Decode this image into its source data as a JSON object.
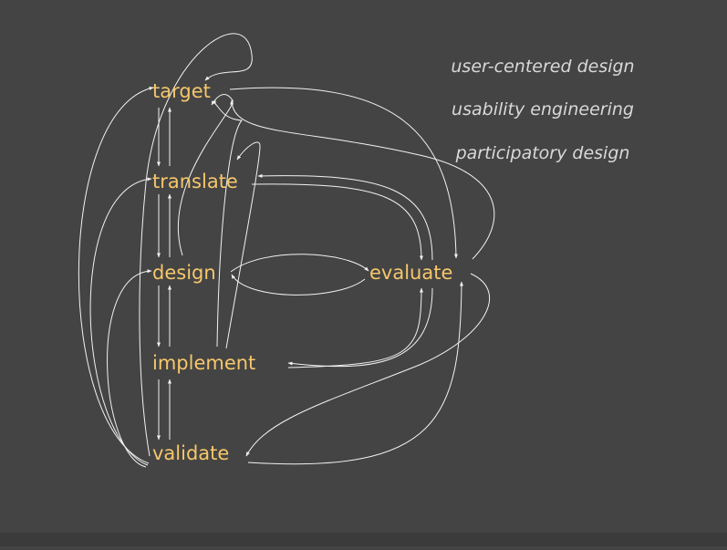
{
  "nodes": {
    "target": "target",
    "translate": "translate",
    "design": "design",
    "implement": "implement",
    "validate": "validate",
    "evaluate": "evaluate"
  },
  "topics": [
    "user-centered design",
    "usability engineering",
    "participatory design"
  ],
  "colors": {
    "background": "#444444",
    "node_text": "#f6c76a",
    "topic_text": "#d8d8d8",
    "edges": "#f2f2f2"
  }
}
